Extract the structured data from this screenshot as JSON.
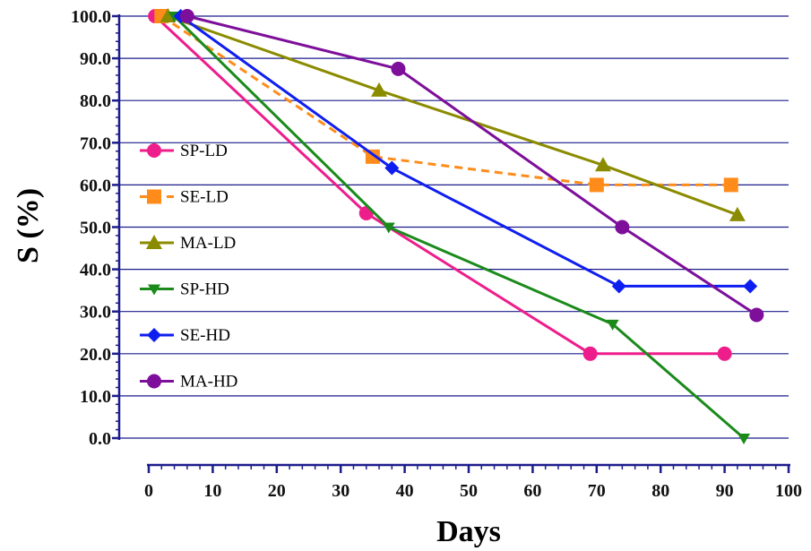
{
  "chart_data": {
    "type": "line",
    "title": "",
    "xlabel": "Days",
    "ylabel": "S (%)",
    "xlim": [
      0,
      100
    ],
    "ylim": [
      0,
      100
    ],
    "x_ticks": [
      0,
      10,
      20,
      30,
      40,
      50,
      60,
      70,
      80,
      90,
      100
    ],
    "x_tick_labels": [
      "0",
      "10",
      "20",
      "30",
      "40",
      "50",
      "60",
      "70",
      "80",
      "90",
      "100"
    ],
    "y_ticks": [
      0,
      10,
      20,
      30,
      40,
      50,
      60,
      70,
      80,
      90,
      100
    ],
    "y_tick_labels": [
      "0.0",
      "10.0",
      "20.0",
      "30.0",
      "40.0",
      "50.0",
      "60.0",
      "70.0",
      "80.0",
      "90.0",
      "100.0"
    ],
    "grid": "horizontal",
    "legend_position": "left",
    "series": [
      {
        "name": "SP-LD",
        "color": "#ee1d8c",
        "marker": "circle",
        "dash": false,
        "x": [
          1,
          34,
          69,
          90
        ],
        "y": [
          100,
          53.3,
          20,
          20
        ]
      },
      {
        "name": "SE-LD",
        "color": "#ff8c1a",
        "marker": "square",
        "dash": true,
        "x": [
          2,
          35,
          70,
          91
        ],
        "y": [
          100,
          66.7,
          60,
          60
        ]
      },
      {
        "name": "MA-LD",
        "color": "#8b8b00",
        "marker": "triangle-up",
        "dash": false,
        "x": [
          3,
          36,
          71,
          92
        ],
        "y": [
          100,
          82.4,
          64.7,
          52.9
        ]
      },
      {
        "name": "SP-HD",
        "color": "#1b8a1b",
        "marker": "triangle-down",
        "dash": false,
        "x": [
          4,
          37.5,
          72.5,
          93
        ],
        "y": [
          100,
          50,
          27,
          0
        ]
      },
      {
        "name": "SE-HD",
        "color": "#0f1ef0",
        "marker": "diamond",
        "dash": false,
        "x": [
          5,
          38,
          73.5,
          94
        ],
        "y": [
          100,
          64,
          36,
          36
        ]
      },
      {
        "name": "MA-HD",
        "color": "#7d0f9a",
        "marker": "circle",
        "dash": false,
        "x": [
          6,
          39,
          74,
          95
        ],
        "y": [
          100,
          87.5,
          50,
          29.2
        ]
      }
    ]
  }
}
